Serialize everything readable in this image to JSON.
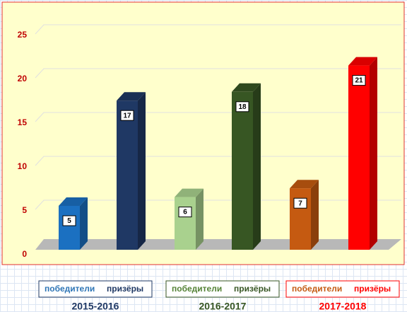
{
  "chart_data": {
    "type": "bar3d",
    "categories": [
      "2015-2016",
      "2016-2017",
      "2017-2018"
    ],
    "category_colors": [
      "#1f3864",
      "#375623",
      "#ff0000"
    ],
    "series": [
      {
        "name": "победители",
        "colors": [
          "#1b70c1",
          "#a9d18e",
          "#c55a11"
        ],
        "legend_colors": [
          "#2e75b6",
          "#548235",
          "#c55a11"
        ],
        "values": [
          5,
          6,
          7
        ]
      },
      {
        "name": "призёры",
        "colors": [
          "#1f3864",
          "#375623",
          "#ff0000"
        ],
        "legend_colors": [
          "#1f3864",
          "#375623",
          "#ff0000"
        ],
        "values": [
          17,
          18,
          21
        ]
      }
    ],
    "ylim": [
      0,
      25
    ],
    "yticks": [
      0,
      5,
      10,
      15,
      20,
      25
    ],
    "grid": true
  }
}
